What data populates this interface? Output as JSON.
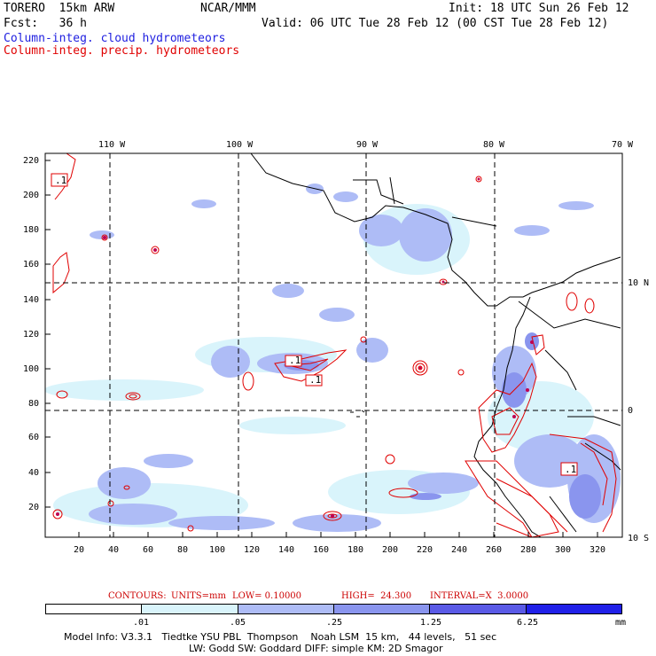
{
  "header": {
    "model": "TORERO  15km ARW",
    "org": "NCAR/MMM",
    "init": "Init: 18 UTC Sun 26 Feb 12",
    "fcst": "Fcst:   36 h",
    "valid": "Valid: 06 UTC Tue 28 Feb 12 (00 CST Tue 28 Feb 12)",
    "field1": "Column-integ. cloud hydrometeors",
    "field2": "Column-integ. precip. hydrometeors",
    "field1_color": "#2020e0",
    "field2_color": "#e00000"
  },
  "map": {
    "top_lon_labels": [
      "110 W",
      "100 W",
      "90 W",
      "80 W",
      "70 W"
    ],
    "right_lat_labels": [
      "10 N",
      "0",
      "10 S"
    ],
    "left_y_ticks": [
      "220",
      "200",
      "180",
      "160",
      "140",
      "120",
      "100",
      "80",
      "60",
      "40",
      "20"
    ],
    "bottom_x_ticks": [
      "20",
      "40",
      "60",
      "80",
      "100",
      "120",
      "140",
      "160",
      "180",
      "200",
      "220",
      "240",
      "260",
      "280",
      "300",
      "320"
    ],
    "contour_labels": [
      ".1",
      ".1",
      ".1",
      ".1"
    ]
  },
  "contours_line": {
    "c1": "CONTOURS:",
    "c2": "UNITS=mm",
    "c3": "LOW= 0.10000",
    "c4": "HIGH=  24.300",
    "c5": "INTERVAL=X  3.0000",
    "color": "#cc0000"
  },
  "colorbar": {
    "colors": [
      "#ffffff",
      "#d9f4fb",
      "#aebcf6",
      "#8a95ee",
      "#5a5ae6",
      "#2020e8"
    ],
    "labels": [
      ".01",
      ".05",
      ".25",
      "1.25",
      "6.25",
      "mm"
    ]
  },
  "footer": {
    "line1": "Model Info: V3.3.1   Tiedtke YSU PBL  Thompson    Noah LSM  15 km,   44 levels,   51 sec",
    "line2": "LW: Godd SW: Goddard DIFF: simple KM: 2D Smagor"
  }
}
